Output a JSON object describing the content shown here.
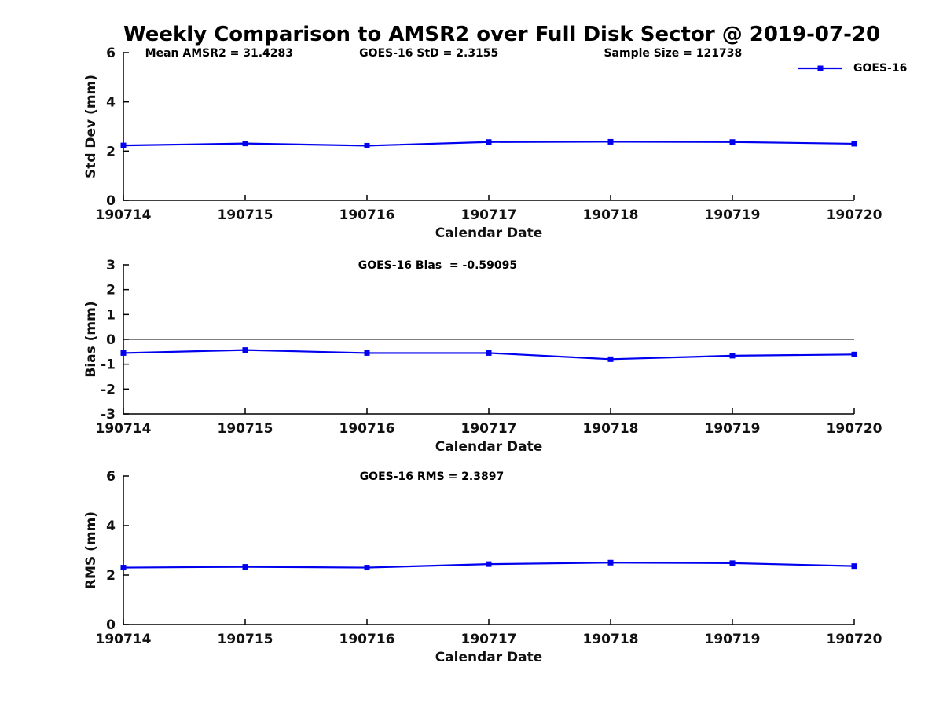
{
  "title": "Weekly Comparison to AMSR2 over Full Disk Sector @ 2019-07-20",
  "legend": {
    "label": "GOES-16",
    "color": "#0000EE",
    "marker": "square",
    "position": "top-right-outside"
  },
  "chart_data": [
    {
      "type": "line",
      "id": "std-dev",
      "ylabel": "Std Dev (mm)",
      "xlabel": "Calendar Date",
      "ylim": [
        0,
        6
      ],
      "yticks": [
        0,
        2,
        4,
        6
      ],
      "grid": false,
      "zero_line": false,
      "categories": [
        "190714",
        "190715",
        "190716",
        "190717",
        "190718",
        "190719",
        "190720"
      ],
      "series": [
        {
          "name": "GOES-16",
          "color": "#0000EE",
          "marker": "square",
          "values": [
            2.23,
            2.31,
            2.22,
            2.37,
            2.38,
            2.37,
            2.3
          ]
        }
      ],
      "annotations": [
        {
          "text": "Mean AMSR2 = 31.4283",
          "fx": 0.131
        },
        {
          "text": "GOES-16 StD = 2.3155",
          "fx": 0.418
        },
        {
          "text": "Sample Size = 121738",
          "fx": 0.752
        }
      ]
    },
    {
      "type": "line",
      "id": "bias",
      "ylabel": "Bias (mm)",
      "xlabel": "Calendar Date",
      "ylim": [
        -3,
        3
      ],
      "yticks": [
        3,
        2,
        1,
        0,
        -1,
        -2,
        -3
      ],
      "grid": false,
      "zero_line": true,
      "categories": [
        "190714",
        "190715",
        "190716",
        "190717",
        "190718",
        "190719",
        "190720"
      ],
      "series": [
        {
          "name": "GOES-16",
          "color": "#0000EE",
          "marker": "square",
          "values": [
            -0.55,
            -0.43,
            -0.55,
            -0.55,
            -0.8,
            -0.66,
            -0.61
          ]
        }
      ],
      "annotations": [
        {
          "text": "GOES-16 Bias  = -0.59095",
          "fx": 0.43
        }
      ]
    },
    {
      "type": "line",
      "id": "rms",
      "ylabel": "RMS (mm)",
      "xlabel": "Calendar Date",
      "ylim": [
        0,
        6
      ],
      "yticks": [
        0,
        2,
        4,
        6
      ],
      "grid": false,
      "zero_line": false,
      "categories": [
        "190714",
        "190715",
        "190716",
        "190717",
        "190718",
        "190719",
        "190720"
      ],
      "series": [
        {
          "name": "GOES-16",
          "color": "#0000EE",
          "marker": "square",
          "values": [
            2.3,
            2.33,
            2.3,
            2.44,
            2.5,
            2.48,
            2.36
          ]
        }
      ],
      "annotations": [
        {
          "text": "GOES-16 RMS = 2.3897",
          "fx": 0.422
        }
      ]
    }
  ]
}
